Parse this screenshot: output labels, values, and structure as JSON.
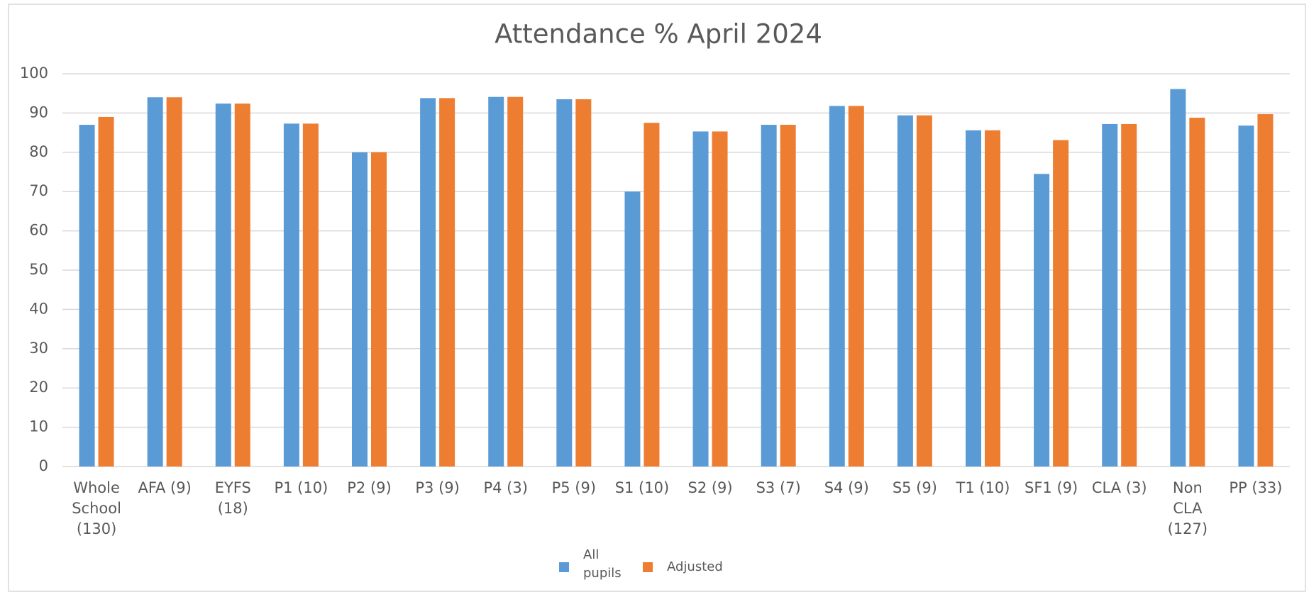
{
  "chart_data": {
    "type": "bar",
    "title": "Attendance % April 2024",
    "categories": [
      "Whole School (130)",
      "AFA (9)",
      "EYFS (18)",
      "P1 (10)",
      "P2 (9)",
      "P3 (9)",
      "P4 (3)",
      "P5 (9)",
      "S1 (10)",
      "S2 (9)",
      "S3 (7)",
      "S4 (9)",
      "S5 (9)",
      "T1 (10)",
      "SF1 (9)",
      "CLA (3)",
      "Non CLA (127)",
      "PP (33)"
    ],
    "series": [
      {
        "name": "All pupils",
        "color": "#5b9bd5",
        "values": [
          87,
          94,
          92.4,
          87.3,
          80,
          93.8,
          94.1,
          93.5,
          70,
          85.3,
          87,
          91.8,
          89.4,
          85.6,
          74.5,
          87.2,
          96.1,
          86.8
        ]
      },
      {
        "name": "Adjusted",
        "color": "#ed7d31",
        "values": [
          89,
          94,
          92.4,
          87.3,
          80,
          93.8,
          94.1,
          93.5,
          87.5,
          85.3,
          87,
          91.8,
          89.4,
          85.6,
          83.1,
          87.2,
          88.8,
          89.7
        ]
      }
    ],
    "ylim": [
      0,
      100
    ],
    "yticks": [
      0,
      10,
      20,
      30,
      40,
      50,
      60,
      70,
      80,
      90,
      100
    ],
    "grid": true,
    "legend": "bottom"
  }
}
